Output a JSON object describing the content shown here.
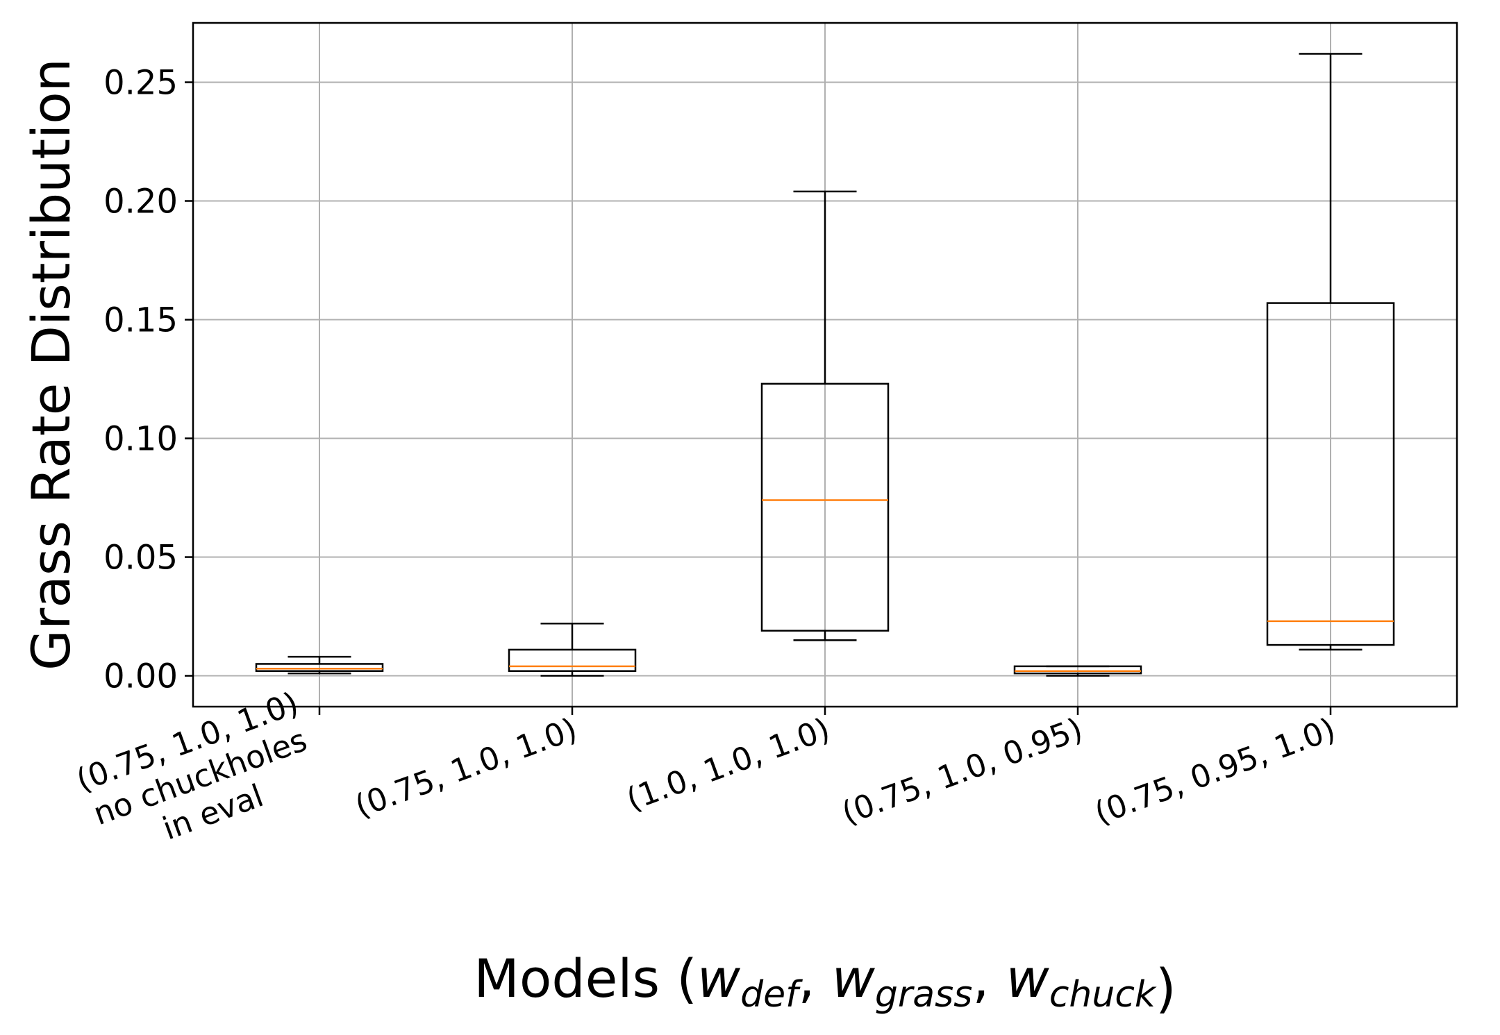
{
  "chart_data": {
    "type": "box",
    "ylabel": "Grass Rate Distribution",
    "xlabel": {
      "prefix": "Models (",
      "terms": [
        {
          "symbol": "w",
          "sub": "def"
        },
        {
          "symbol": "w",
          "sub": "grass"
        },
        {
          "symbol": "w",
          "sub": "chuck"
        }
      ],
      "suffix": ")"
    },
    "ylim": [
      -0.013,
      0.275
    ],
    "yticks": [
      0.0,
      0.05,
      0.1,
      0.15,
      0.2,
      0.25
    ],
    "ytick_labels": [
      "0.00",
      "0.05",
      "0.10",
      "0.15",
      "0.20",
      "0.25"
    ],
    "grid": true,
    "categories": [
      [
        "(0.75, 1.0, 1.0)",
        "no chuckholes",
        "in eval"
      ],
      [
        "(0.75, 1.0, 1.0)"
      ],
      [
        "(1.0, 1.0, 1.0)"
      ],
      [
        "(0.75, 1.0, 0.95)"
      ],
      [
        "(0.75, 0.95, 1.0)"
      ]
    ],
    "boxes": [
      {
        "whisker_low": 0.001,
        "q1": 0.002,
        "median": 0.003,
        "q3": 0.005,
        "whisker_high": 0.008
      },
      {
        "whisker_low": 0.0,
        "q1": 0.002,
        "median": 0.004,
        "q3": 0.011,
        "whisker_high": 0.022
      },
      {
        "whisker_low": 0.015,
        "q1": 0.019,
        "median": 0.074,
        "q3": 0.123,
        "whisker_high": 0.204
      },
      {
        "whisker_low": 0.0,
        "q1": 0.001,
        "median": 0.002,
        "q3": 0.004,
        "whisker_high": 0.004
      },
      {
        "whisker_low": 0.011,
        "q1": 0.013,
        "median": 0.023,
        "q3": 0.157,
        "whisker_high": 0.262
      }
    ],
    "colors": {
      "box": "#000000",
      "median": "#ff7f0e",
      "grid": "#b0b0b0"
    }
  }
}
